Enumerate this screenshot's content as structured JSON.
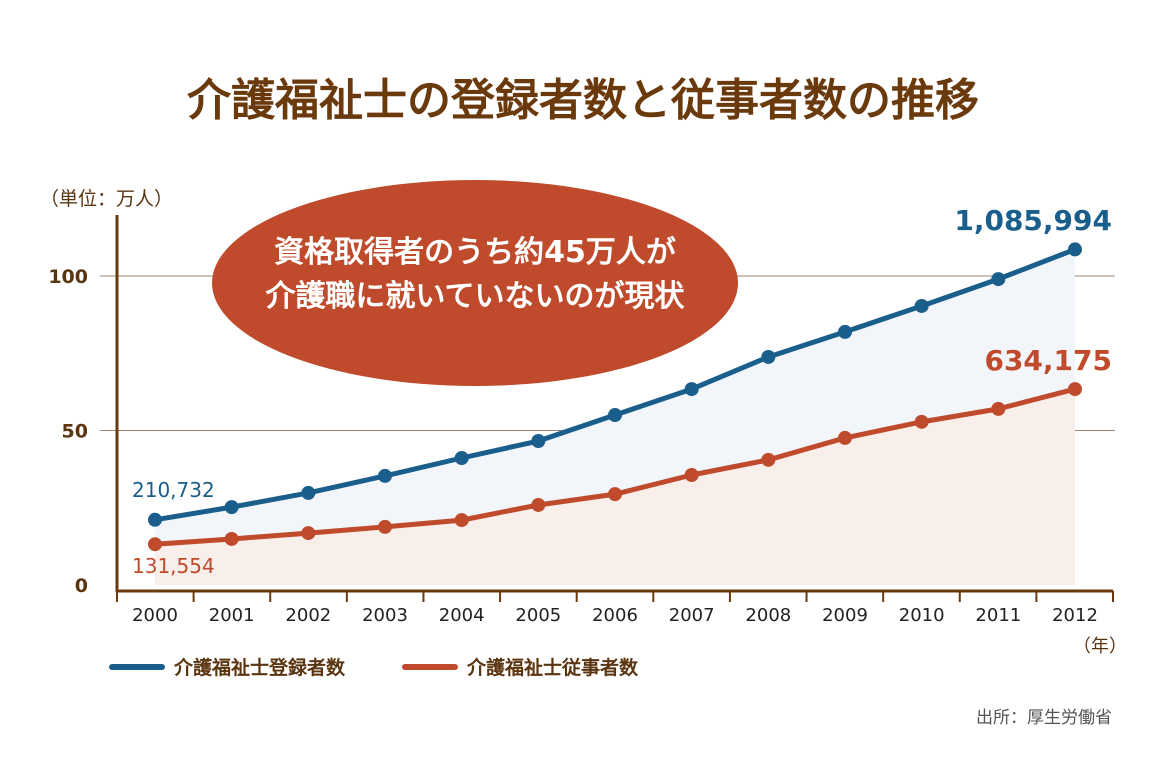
{
  "chart_data": {
    "type": "line",
    "title": "介護福祉士の登録者数と従事者数の推移",
    "unit_label": "（単位：万人）",
    "xlabel": "（年）",
    "x": [
      "2000",
      "2001",
      "2002",
      "2003",
      "2004",
      "2005",
      "2006",
      "2007",
      "2008",
      "2009",
      "2010",
      "2011",
      "2012"
    ],
    "ylim": [
      0,
      110
    ],
    "yticks": [
      "0",
      "50",
      "100"
    ],
    "grid": true,
    "series": [
      {
        "name": "介護福祉士登録者数",
        "color": "#1a5e8c",
        "fill": "#f2f6fa",
        "values": [
          21.1,
          25.2,
          29.8,
          35.3,
          41.1,
          46.6,
          55.0,
          63.4,
          73.8,
          81.9,
          90.3,
          99.0,
          108.6
        ],
        "first_label": "210,732",
        "last_label": "1,085,994"
      },
      {
        "name": "介護福祉士従事者数",
        "color": "#bf4b2c",
        "fill": "#f8eeea",
        "values": [
          13.2,
          14.9,
          16.8,
          18.8,
          21.0,
          25.9,
          29.4,
          35.6,
          40.5,
          47.6,
          52.8,
          57.0,
          63.4
        ],
        "first_label": "131,554",
        "last_label": "634,175"
      }
    ],
    "annotation": [
      "資格取得者のうち約45万人が",
      "介護職に就いていないのが現状"
    ],
    "source": "出所：厚生労働省",
    "legend": "bottom-left"
  }
}
